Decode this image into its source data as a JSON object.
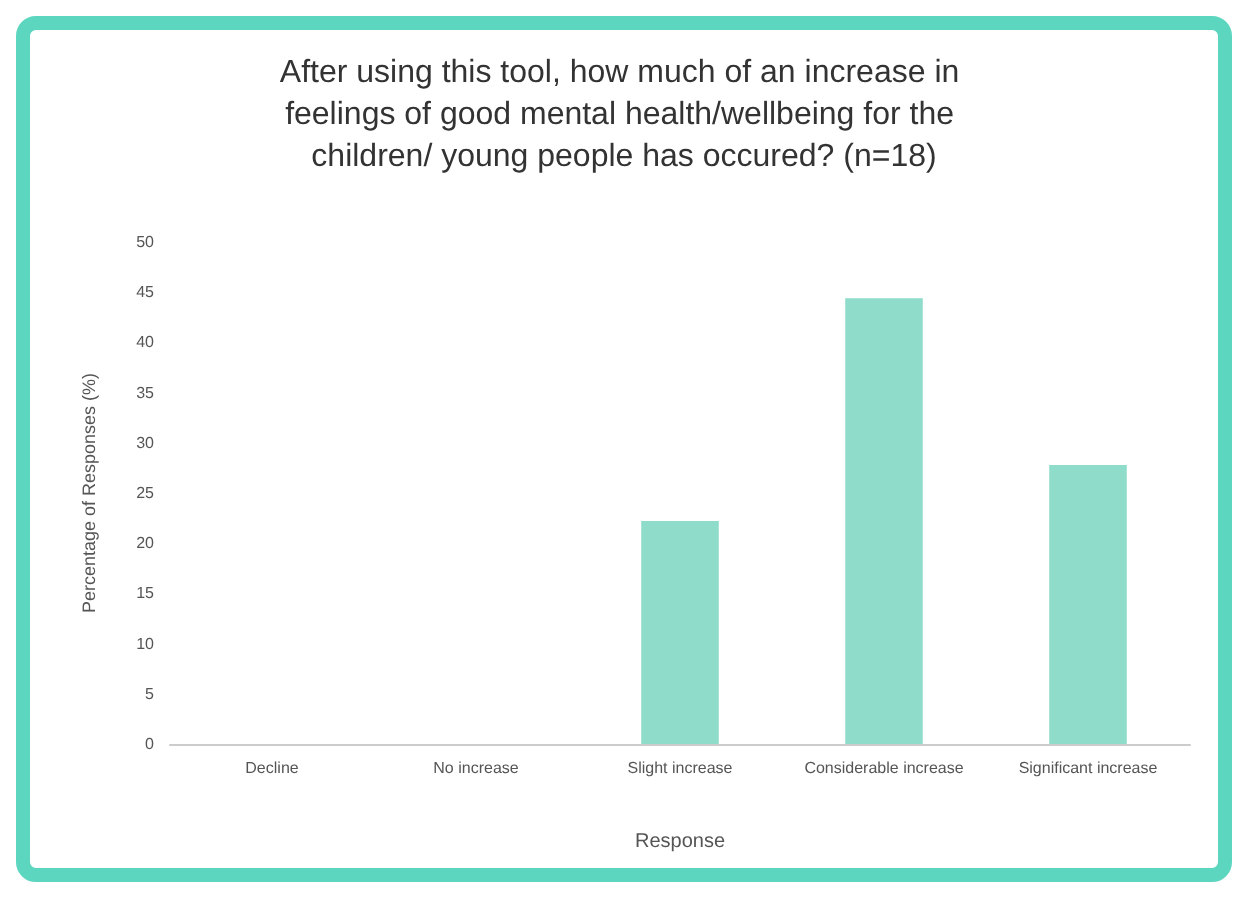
{
  "chart_data": {
    "type": "bar",
    "title": "After using this tool, how much of an increase in feelings of good mental health/wellbeing for the children/ young people has occured? (n=18)",
    "xlabel": "Response",
    "ylabel": "Percentage of Responses (%)",
    "categories": [
      "Decline",
      "No increase",
      "Slight increase",
      "Considerable increase",
      "Significant increase"
    ],
    "values": [
      0,
      0,
      22.2,
      44.4,
      27.8
    ],
    "color": "#8fdcca",
    "ylim": [
      0,
      50
    ],
    "yticks": [
      0,
      5,
      10,
      15,
      20,
      25,
      30,
      35,
      40,
      45,
      50
    ],
    "grid": false
  }
}
